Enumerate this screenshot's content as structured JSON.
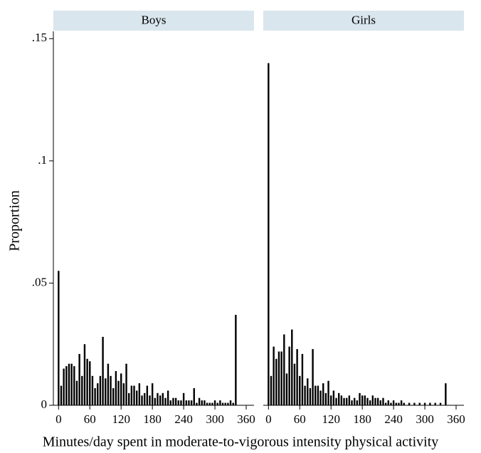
{
  "chart_data": [
    {
      "type": "bar",
      "title": "Boys",
      "ylabel": "Proportion",
      "xlabel": "Minutes/day spent in moderate-to-vigorous intensity physical activity",
      "color": "#000000",
      "strip_color": "#d9e6ee",
      "x": [
        0,
        5,
        10,
        15,
        20,
        25,
        30,
        35,
        40,
        45,
        50,
        55,
        60,
        65,
        70,
        75,
        80,
        85,
        90,
        95,
        100,
        105,
        110,
        115,
        120,
        125,
        130,
        135,
        140,
        145,
        150,
        155,
        160,
        165,
        170,
        175,
        180,
        185,
        190,
        195,
        200,
        205,
        210,
        215,
        220,
        225,
        230,
        235,
        240,
        245,
        250,
        255,
        260,
        265,
        270,
        275,
        280,
        285,
        290,
        295,
        300,
        305,
        310,
        315,
        320,
        325,
        330,
        335,
        340
      ],
      "values": [
        0.055,
        0.008,
        0.015,
        0.016,
        0.017,
        0.017,
        0.016,
        0.01,
        0.021,
        0.012,
        0.025,
        0.019,
        0.018,
        0.012,
        0.007,
        0.009,
        0.012,
        0.028,
        0.011,
        0.017,
        0.012,
        0.007,
        0.014,
        0.01,
        0.013,
        0.009,
        0.017,
        0.005,
        0.008,
        0.008,
        0.006,
        0.009,
        0.004,
        0.005,
        0.008,
        0.004,
        0.009,
        0.003,
        0.005,
        0.004,
        0.005,
        0.003,
        0.006,
        0.002,
        0.003,
        0.003,
        0.002,
        0.002,
        0.005,
        0.002,
        0.002,
        0.002,
        0.007,
        0.001,
        0.003,
        0.002,
        0.002,
        0.001,
        0.001,
        0.001,
        0.002,
        0.001,
        0.002,
        0.001,
        0.001,
        0.001,
        0.002,
        0.001,
        0.037
      ],
      "xlim": [
        -10,
        375
      ],
      "xticks": [
        0,
        60,
        120,
        180,
        240,
        300,
        360
      ],
      "ylim": [
        0,
        0.153
      ],
      "yticks": [
        0,
        {
          "value": 0.05,
          "label": ".05"
        },
        {
          "value": 0.1,
          "label": ".1"
        },
        {
          "value": 0.15,
          "label": ".15"
        }
      ]
    },
    {
      "type": "bar",
      "title": "Girls",
      "color": "#000000",
      "strip_color": "#d9e6ee",
      "x": [
        0,
        5,
        10,
        15,
        20,
        25,
        30,
        35,
        40,
        45,
        50,
        55,
        60,
        65,
        70,
        75,
        80,
        85,
        90,
        95,
        100,
        105,
        110,
        115,
        120,
        125,
        130,
        135,
        140,
        145,
        150,
        155,
        160,
        165,
        170,
        175,
        180,
        185,
        190,
        195,
        200,
        205,
        210,
        215,
        220,
        225,
        230,
        235,
        240,
        245,
        250,
        255,
        260,
        270,
        280,
        290,
        300,
        310,
        320,
        330,
        340
      ],
      "values": [
        0.14,
        0.012,
        0.024,
        0.019,
        0.022,
        0.022,
        0.029,
        0.013,
        0.024,
        0.031,
        0.017,
        0.023,
        0.012,
        0.021,
        0.008,
        0.011,
        0.007,
        0.023,
        0.008,
        0.008,
        0.006,
        0.009,
        0.005,
        0.01,
        0.004,
        0.006,
        0.003,
        0.005,
        0.004,
        0.003,
        0.003,
        0.004,
        0.002,
        0.003,
        0.002,
        0.005,
        0.004,
        0.004,
        0.003,
        0.002,
        0.004,
        0.003,
        0.003,
        0.002,
        0.003,
        0.001,
        0.002,
        0.001,
        0.002,
        0.001,
        0.001,
        0.002,
        0.001,
        0.001,
        0.001,
        0.001,
        0.001,
        0.001,
        0.001,
        0.001,
        0.009
      ],
      "xlim": [
        -10,
        375
      ],
      "xticks": [
        0,
        60,
        120,
        180,
        240,
        300,
        360
      ],
      "ylim": [
        0,
        0.153
      ]
    }
  ]
}
